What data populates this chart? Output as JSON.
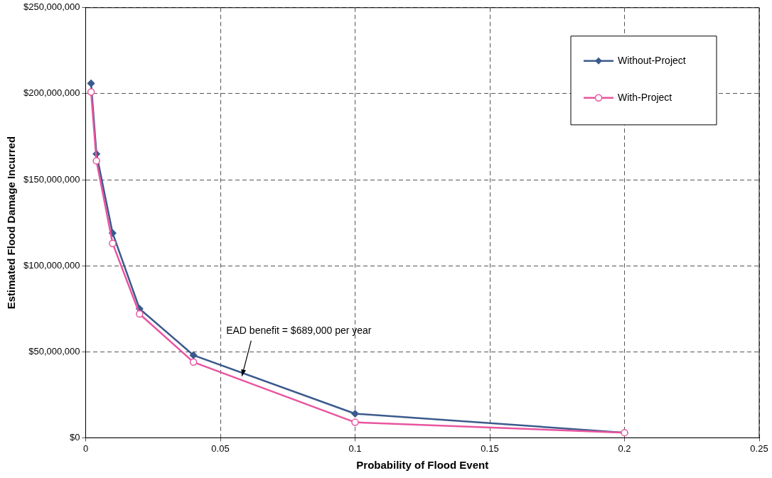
{
  "chart_data": {
    "type": "line",
    "xlabel": "Probability of Flood Event",
    "ylabel": "Estimated Flood Damage Incurred",
    "x": [
      0.002,
      0.004,
      0.01,
      0.02,
      0.04,
      0.1,
      0.2
    ],
    "series": [
      {
        "name": "Without-Project",
        "color": "#3b5a8c",
        "marker": "diamond",
        "values": [
          206000000,
          165000000,
          119000000,
          75000000,
          48000000,
          14000000,
          3000000
        ]
      },
      {
        "name": "With-Project",
        "color": "#e8559f",
        "marker": "circle",
        "values": [
          201000000,
          161000000,
          113000000,
          72000000,
          44000000,
          9000000,
          3000000
        ]
      }
    ],
    "xlim": [
      0,
      0.25
    ],
    "xticks": [
      0,
      0.05,
      0.1,
      0.15,
      0.2,
      0.25
    ],
    "ylim": [
      0,
      250000000
    ],
    "yticks": [
      {
        "value": 0,
        "label": "$0"
      },
      {
        "value": 50000000,
        "label": "$50,000,000"
      },
      {
        "value": 100000000,
        "label": "$100,000,000"
      },
      {
        "value": 150000000,
        "label": "$150,000,000"
      },
      {
        "value": 200000000,
        "label": "$200,000,000"
      },
      {
        "value": 250000000,
        "label": "$250,000,000"
      }
    ],
    "annotations": [
      {
        "text": "EAD benefit = $689,000 per year",
        "x": 0.058,
        "y": 35000000
      }
    ],
    "grid": true,
    "line_style": "solid",
    "legend": "top right"
  }
}
